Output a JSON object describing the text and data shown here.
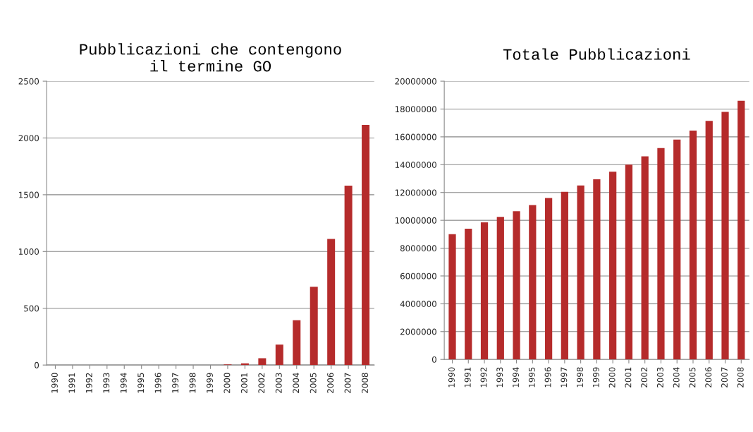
{
  "chart_data": [
    {
      "type": "bar",
      "title": "Pubblicazioni che contengono\nil termine GO",
      "categories": [
        "1990",
        "1991",
        "1992",
        "1993",
        "1994",
        "1995",
        "1996",
        "1997",
        "1998",
        "1999",
        "2000",
        "2001",
        "2002",
        "2003",
        "2004",
        "2005",
        "2006",
        "2007",
        "2008"
      ],
      "values": [
        0,
        0,
        0,
        0,
        0,
        0,
        0,
        null,
        null,
        null,
        5,
        15,
        60,
        180,
        395,
        690,
        1110,
        1580,
        2115
      ],
      "color": "#b52b2b",
      "ylim": [
        0,
        2500
      ],
      "yticks": [
        0,
        500,
        1000,
        1500,
        2000,
        2500
      ],
      "grid": "y"
    },
    {
      "type": "bar",
      "title": "Totale Pubblicazioni",
      "categories": [
        "1990",
        "1991",
        "1992",
        "1993",
        "1994",
        "1995",
        "1996",
        "1997",
        "1998",
        "1999",
        "2000",
        "2001",
        "2002",
        "2003",
        "2004",
        "2005",
        "2006",
        "2007",
        "2008"
      ],
      "values": [
        9000000,
        9400000,
        9850000,
        10250000,
        10650000,
        11100000,
        11600000,
        12050000,
        12500000,
        12950000,
        13500000,
        14000000,
        14600000,
        15200000,
        15800000,
        16450000,
        17150000,
        17800000,
        18600000
      ],
      "color": "#b52b2b",
      "ylim": [
        0,
        20000000
      ],
      "yticks": [
        0,
        2000000,
        4000000,
        6000000,
        8000000,
        10000000,
        12000000,
        14000000,
        16000000,
        18000000,
        20000000
      ],
      "grid": "y"
    }
  ]
}
